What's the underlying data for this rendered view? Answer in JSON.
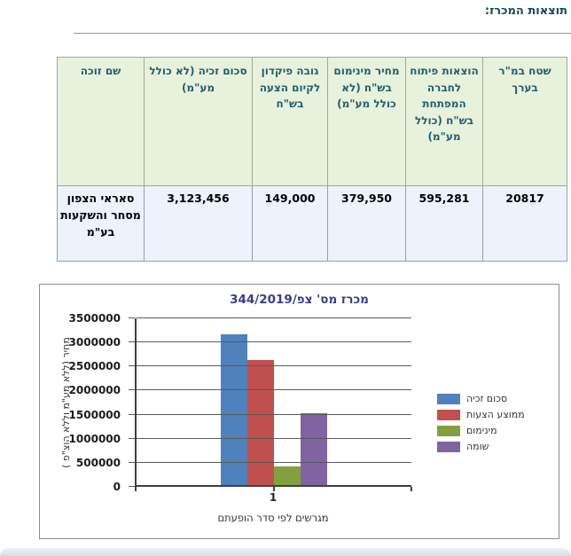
{
  "page": {
    "title": "תוצאות המכרז:"
  },
  "theme": {
    "title_color": "#17445a",
    "table_header_bg": "#e8f1dc",
    "table_header_text": "#215e6e",
    "table_row_bg": "#ecf3fa",
    "chart_title_color": "#3b3b85"
  },
  "table": {
    "columns": [
      {
        "label": "שטח במ\"ר בערך"
      },
      {
        "label": "הוצאות פיתוח לחברה המפתחת בש\"ח (כולל מע\"מ)"
      },
      {
        "label": "מחיר מינימום בש\"ח (לא כולל מע\"מ)"
      },
      {
        "label": "גובה פיקדון לקיום הצעה בש\"ח"
      },
      {
        "label": "סכום זכיה (לא כולל מע\"מ)"
      },
      {
        "label": "שם זוכה"
      }
    ],
    "rows": [
      [
        "20817",
        "595,281",
        "379,950",
        "149,000",
        "3,123,456",
        "סאראי הצפון מסחר והשקעות בע\"מ"
      ]
    ]
  },
  "chart_data": {
    "type": "bar",
    "title": "מכרז מס' צפ/344/2019",
    "xlabel": "מגרשים לפי סדר הופעתם",
    "ylabel": "מחיר (ללא מע\"מ וללא הוצ\"פ )",
    "categories": [
      "1"
    ],
    "series": [
      {
        "name": "סכום זכיה",
        "color": "#4f81bd",
        "values": [
          3123456
        ]
      },
      {
        "name": "ממוצע הצעות",
        "color": "#c0504d",
        "values": [
          2600000
        ]
      },
      {
        "name": "מינימום",
        "color": "#84a03e",
        "values": [
          379950
        ]
      },
      {
        "name": "שומה",
        "color": "#8064a2",
        "values": [
          1500000
        ]
      }
    ],
    "ylim": [
      0,
      3500000
    ],
    "ytick_step": 500000,
    "grid": true,
    "legend_position": "right"
  }
}
